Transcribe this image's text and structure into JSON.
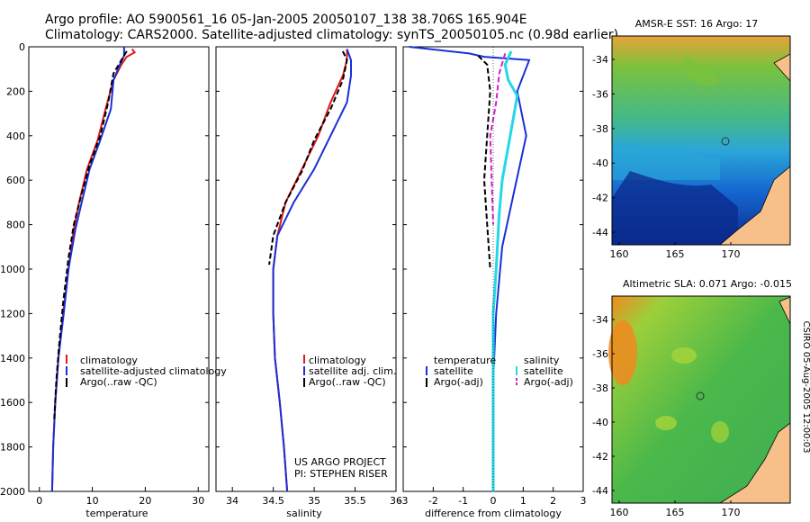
{
  "header": {
    "line1": "Argo profile: AO 5900561_16 05-Jan-2005 20050107_138 38.706S 165.904E",
    "line2": "Climatology: CARS2000. Satellite-adjusted climatology: synTS_20050105.nc (0.98d earlier)"
  },
  "colors": {
    "climatology": "#e01a1a",
    "satellite": "#1a2fd6",
    "argo": "#000000",
    "satellite_sal_diff": "#22d8e8",
    "argo_sal_diff": "#d020d0",
    "land": "#f7c08a"
  },
  "chart_data": [
    {
      "type": "line",
      "name": "temperature",
      "xlabel": "temperature",
      "xlim": [
        -2,
        32
      ],
      "xticks": [
        "0",
        "10",
        "20",
        "30"
      ],
      "ylim": [
        2000,
        0
      ],
      "yticks": [
        "0",
        "200",
        "400",
        "600",
        "800",
        "1000",
        "1200",
        "1400",
        "1600",
        "1800",
        "2000"
      ],
      "series": [
        {
          "name": "climatology",
          "dash": "solid",
          "points": [
            [
              17.5,
              10
            ],
            [
              18,
              25
            ],
            [
              16.5,
              45
            ],
            [
              15.5,
              80
            ],
            [
              14,
              150
            ],
            [
              12.5,
              280
            ],
            [
              11,
              420
            ],
            [
              9,
              550
            ],
            [
              7.5,
              700
            ],
            [
              6.5,
              820
            ],
            [
              5.5,
              1000
            ],
            [
              4.5,
              1200
            ],
            [
              3.6,
              1400
            ],
            [
              3,
              1600
            ],
            [
              2.6,
              1800
            ],
            [
              2.4,
              2000
            ]
          ]
        },
        {
          "name": "satellite-adjusted climatology",
          "dash": "solid",
          "points": [
            [
              16,
              0
            ],
            [
              16,
              40
            ],
            [
              15.2,
              80
            ],
            [
              14,
              150
            ],
            [
              13.5,
              280
            ],
            [
              11.5,
              420
            ],
            [
              9.5,
              550
            ],
            [
              8,
              700
            ],
            [
              6.8,
              820
            ],
            [
              5.5,
              1000
            ],
            [
              4.6,
              1200
            ],
            [
              3.6,
              1400
            ],
            [
              3,
              1600
            ],
            [
              2.6,
              1800
            ],
            [
              2.4,
              2000
            ]
          ]
        },
        {
          "name": "Argo(..raw -QC)",
          "dash": "dashed",
          "points": [
            [
              16.5,
              20
            ],
            [
              15.5,
              60
            ],
            [
              14,
              120
            ],
            [
              13,
              250
            ],
            [
              11.5,
              400
            ],
            [
              9.5,
              530
            ],
            [
              8,
              660
            ],
            [
              6.5,
              800
            ],
            [
              5.5,
              950
            ],
            [
              4.5,
              1150
            ],
            [
              3.7,
              1350
            ],
            [
              3.2,
              1500
            ],
            [
              2.8,
              1680
            ]
          ]
        }
      ],
      "legend": [
        "climatology",
        "satellite-adjusted climatology",
        "Argo(..raw -QC)"
      ]
    },
    {
      "type": "line",
      "name": "salinity",
      "xlabel": "salinity",
      "xlim": [
        33.8,
        36
      ],
      "xticks": [
        "34",
        "34.5",
        "35",
        "35.5",
        "36"
      ],
      "ylim": [
        2000,
        0
      ],
      "series": [
        {
          "name": "climatology",
          "dash": "solid",
          "points": [
            [
              35.4,
              10
            ],
            [
              35.4,
              60
            ],
            [
              35.35,
              130
            ],
            [
              35.2,
              250
            ],
            [
              35.05,
              400
            ],
            [
              34.85,
              550
            ],
            [
              34.65,
              700
            ],
            [
              34.55,
              850
            ],
            [
              34.5,
              1000
            ],
            [
              34.5,
              1200
            ],
            [
              34.52,
              1400
            ],
            [
              34.58,
              1600
            ],
            [
              34.63,
              1800
            ],
            [
              34.67,
              2000
            ]
          ]
        },
        {
          "name": "satellite adj. clim.",
          "dash": "solid",
          "points": [
            [
              35.4,
              10
            ],
            [
              35.45,
              60
            ],
            [
              35.45,
              130
            ],
            [
              35.4,
              250
            ],
            [
              35.2,
              400
            ],
            [
              35,
              550
            ],
            [
              34.75,
              700
            ],
            [
              34.55,
              850
            ],
            [
              34.5,
              1000
            ],
            [
              34.5,
              1200
            ],
            [
              34.52,
              1400
            ],
            [
              34.58,
              1600
            ],
            [
              34.63,
              1800
            ],
            [
              34.67,
              2000
            ]
          ]
        },
        {
          "name": "Argo(..raw -QC)",
          "dash": "dashed",
          "points": [
            [
              35.35,
              20
            ],
            [
              35.4,
              60
            ],
            [
              35.35,
              150
            ],
            [
              35.2,
              280
            ],
            [
              35,
              420
            ],
            [
              34.85,
              560
            ],
            [
              34.65,
              700
            ],
            [
              34.5,
              850
            ],
            [
              34.45,
              980
            ]
          ]
        }
      ],
      "legend": [
        "climatology",
        "satellite adj. clim.",
        "Argo(..raw -QC)"
      ],
      "annotation": [
        "US ARGO PROJECT",
        "PI: STEPHEN RISER"
      ]
    },
    {
      "type": "line",
      "name": "difference from climatology",
      "xlabel": "difference from climatology",
      "xlim": [
        -3,
        3
      ],
      "xticks": [
        "-3",
        "-2",
        "-1",
        "0",
        "1",
        "2",
        "3"
      ],
      "ylim": [
        2000,
        0
      ],
      "series": [
        {
          "name": "temperature satellite",
          "dash": "solid",
          "points": [
            [
              -2.8,
              0
            ],
            [
              -0.8,
              30
            ],
            [
              -0.3,
              45
            ],
            [
              1.2,
              60
            ],
            [
              0.8,
              200
            ],
            [
              1.1,
              400
            ],
            [
              0.7,
              650
            ],
            [
              0.3,
              900
            ],
            [
              0.1,
              1200
            ],
            [
              0,
              1500
            ],
            [
              0,
              2000
            ]
          ]
        },
        {
          "name": "temperature Argo(-adj)",
          "dash": "dashed",
          "points": [
            [
              -0.5,
              40
            ],
            [
              -0.2,
              80
            ],
            [
              -0.1,
              200
            ],
            [
              -0.2,
              400
            ],
            [
              -0.3,
              600
            ],
            [
              -0.2,
              800
            ],
            [
              -0.1,
              1000
            ]
          ]
        },
        {
          "name": "salinity satellite",
          "dash": "solid",
          "points": [
            [
              0.6,
              20
            ],
            [
              0.4,
              80
            ],
            [
              0.5,
              150
            ],
            [
              0.8,
              220
            ],
            [
              0.7,
              300
            ],
            [
              0.5,
              450
            ],
            [
              0.3,
              600
            ],
            [
              0.2,
              750
            ],
            [
              0.1,
              1000
            ],
            [
              0,
              1200
            ],
            [
              0,
              2000
            ]
          ]
        },
        {
          "name": "salinity Argo(-adj)",
          "dash": "dashed",
          "points": [
            [
              0.4,
              30
            ],
            [
              0.2,
              120
            ],
            [
              0.1,
              250
            ],
            [
              -0.1,
              400
            ],
            [
              -0.05,
              600
            ],
            [
              0,
              800
            ]
          ]
        }
      ],
      "legend": {
        "temperature_heading": "temperature",
        "salinity_heading": "salinity",
        "items": [
          "satellite",
          "Argo(-adj)",
          "satellite",
          "Argo(-adj)"
        ]
      }
    }
  ],
  "maps": [
    {
      "title": "AMSR-E SST: 16 Argo: 17",
      "yticks": [
        "-34",
        "-36",
        "-38",
        "-40",
        "-42",
        "-44"
      ],
      "xticks": [
        "160",
        "165",
        "170"
      ]
    },
    {
      "title": "Altimetric SLA: 0.071 Argo: -0.015",
      "yticks": [
        "-34",
        "-36",
        "-38",
        "-40",
        "-42",
        "-44"
      ],
      "xticks": [
        "160",
        "165",
        "170"
      ]
    }
  ],
  "stamp": "CSIRO 05-Aug-2005 12:00:03"
}
